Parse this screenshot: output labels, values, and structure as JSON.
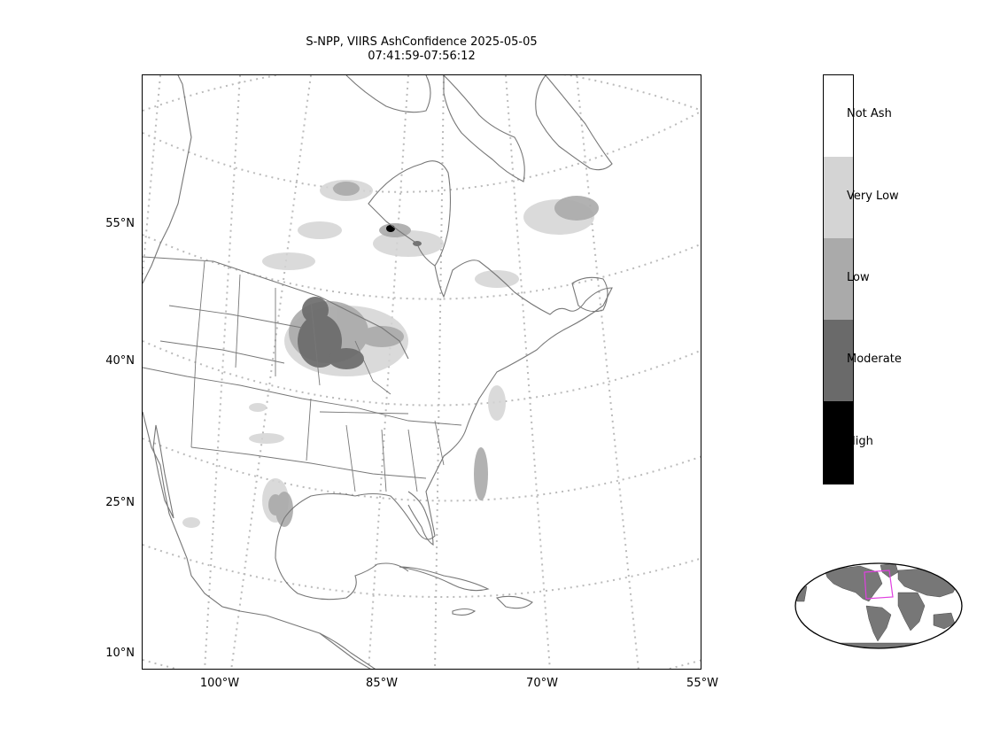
{
  "title": {
    "line1": "S-NPP, VIIRS AshConfidence 2025-05-05",
    "line2": "07:41:59-07:56:12"
  },
  "lat_ticks": [
    "55°N",
    "40°N",
    "25°N",
    "10°N"
  ],
  "lon_ticks": [
    "100°W",
    "85°W",
    "70°W",
    "55°W"
  ],
  "colorbar": {
    "categories": [
      {
        "label": "Not Ash",
        "color": "#ffffff"
      },
      {
        "label": "Very Low",
        "color": "#d4d4d4"
      },
      {
        "label": "Low",
        "color": "#aaaaaa"
      },
      {
        "label": "Moderate",
        "color": "#6a6a6a"
      },
      {
        "label": "High",
        "color": "#000000"
      }
    ]
  },
  "colors": {
    "coastline": "#777777",
    "graticule": "#bbbbbb",
    "inset_land": "#777777",
    "inset_highlight": "#e040e0"
  }
}
